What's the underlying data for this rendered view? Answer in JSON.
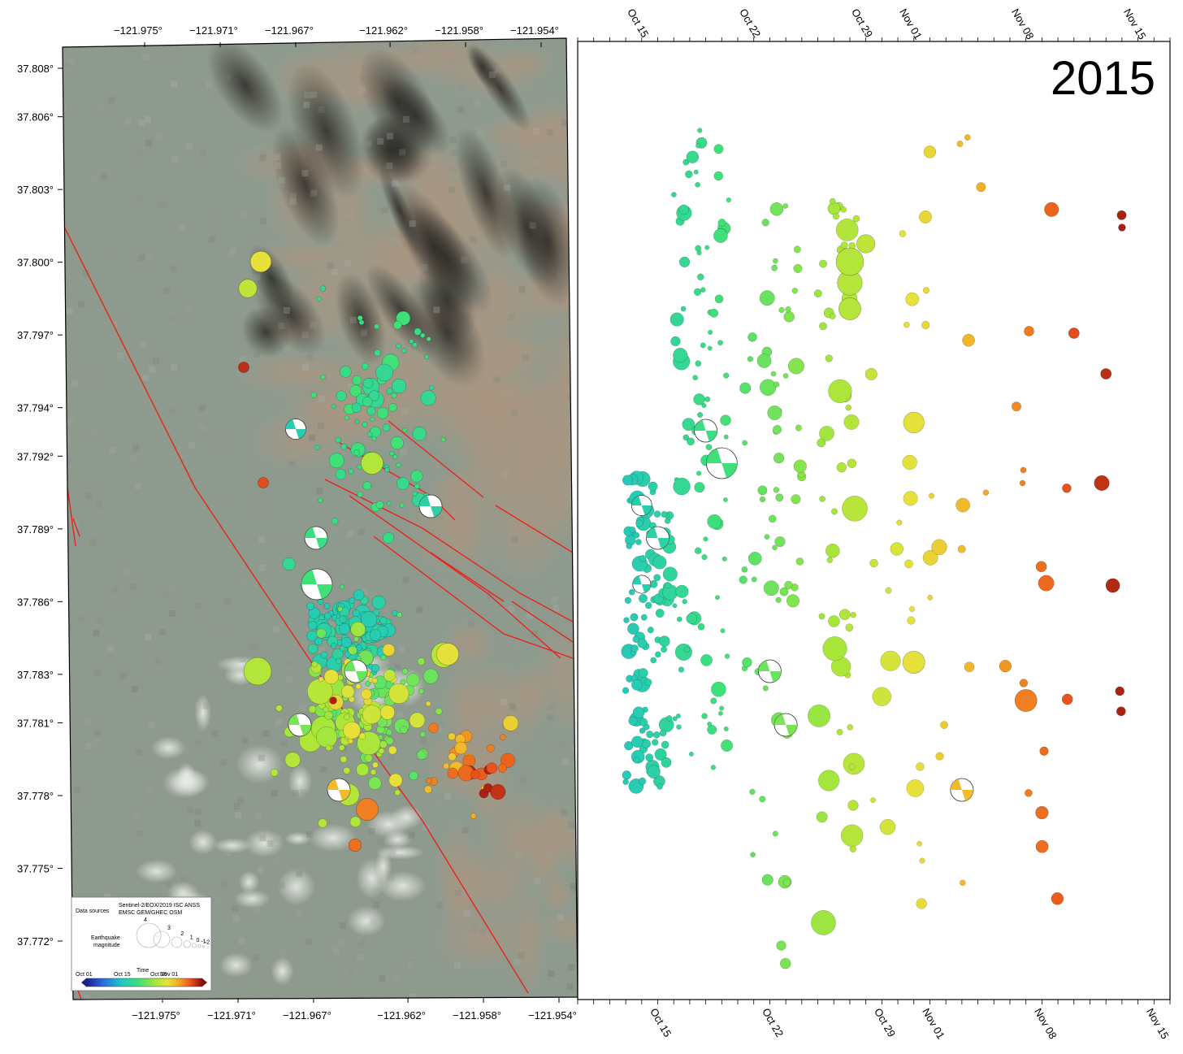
{
  "year_label": "2015",
  "map": {
    "lon_ticks": [
      "−121.975°",
      "−121.971°",
      "−121.967°",
      "−121.962°",
      "−121.958°",
      "−121.954°"
    ],
    "lon_values": [
      -121.975,
      -121.971,
      -121.967,
      -121.962,
      -121.958,
      -121.954
    ],
    "lat_ticks": [
      "37.808°",
      "37.806°",
      "37.803°",
      "37.800°",
      "37.797°",
      "37.794°",
      "37.792°",
      "37.789°",
      "37.786°",
      "37.783°",
      "37.781°",
      "37.778°",
      "37.775°",
      "37.772°"
    ],
    "lat_values": [
      37.808,
      37.806,
      37.803,
      37.8,
      37.797,
      37.794,
      37.792,
      37.789,
      37.786,
      37.783,
      37.781,
      37.778,
      37.775,
      37.772
    ],
    "fault_color": "#e8231c",
    "legend": {
      "sources_label": "Data sources",
      "sources_line1": "Sentinel-2/EOX/2019 ISC ANSS",
      "sources_line2": "EMSC GEM/GHEC OSM",
      "magnitude_label_1": "Earthquake",
      "magnitude_label_2": "magnitude",
      "magnitude_values": [
        "4",
        "3",
        "2",
        "1",
        "0",
        "-1",
        "-2"
      ],
      "time_label": "Time",
      "time_ticks": [
        "Oct 01",
        "Oct 15",
        "Oct 29",
        "Nov 01"
      ]
    }
  },
  "timeline": {
    "date_ticks": [
      "Oct 15",
      "Oct 22",
      "Oct 29",
      "Nov 01",
      "Nov 08",
      "Nov 15"
    ],
    "date_values": [
      "2015-10-15",
      "2015-10-22",
      "2015-10-29",
      "2015-11-01",
      "2015-11-08",
      "2015-11-15"
    ]
  },
  "colormap": [
    "#1c1c8c",
    "#2a6fdc",
    "#1fc4c8",
    "#3ee07a",
    "#a8e63a",
    "#e6e23a",
    "#f5a623",
    "#e8521c",
    "#8b0e0e"
  ],
  "chart_data": {
    "type": "scatter",
    "title": "2015",
    "x_axis": "date",
    "xlim": [
      "2015-10-11",
      "2015-11-17"
    ],
    "x_ticks": [
      "Oct 15",
      "Oct 22",
      "Oct 29",
      "Nov 01",
      "Nov 08",
      "Nov 15"
    ],
    "color_encodes": "time",
    "note_values": "approximate event times and magnitudes read from marker placement and size",
    "events": [
      {
        "date": "2015-10-15",
        "mag": 1.6,
        "focal": true
      },
      {
        "date": "2015-10-15",
        "mag": 1.4,
        "focal": true
      },
      {
        "date": "2015-10-16",
        "mag": 1.8,
        "focal": true
      },
      {
        "date": "2015-10-19",
        "mag": 1.8,
        "focal": true
      },
      {
        "date": "2015-10-20",
        "mag": 2.4,
        "focal": true
      },
      {
        "date": "2015-10-23",
        "mag": 1.8,
        "focal": true
      },
      {
        "date": "2015-10-24",
        "mag": 1.8,
        "focal": true
      },
      {
        "date": "2015-11-04",
        "mag": 1.8,
        "focal": true
      },
      {
        "date": "2015-10-28",
        "mag": 2.0
      },
      {
        "date": "2015-10-28",
        "mag": 2.2
      },
      {
        "date": "2015-10-28",
        "mag": 2.4
      },
      {
        "date": "2015-10-29",
        "mag": 1.7
      },
      {
        "date": "2015-11-01",
        "mag": 1.9
      },
      {
        "date": "2015-11-01",
        "mag": 2.0
      },
      {
        "date": "2015-11-08",
        "mag": 2.0
      },
      {
        "date": "2015-11-09",
        "mag": 1.2
      },
      {
        "date": "2015-11-11",
        "mag": 1.0
      },
      {
        "date": "2015-11-13",
        "mag": 1.0
      },
      {
        "date": "2015-11-14",
        "mag": 0.6
      }
    ]
  }
}
